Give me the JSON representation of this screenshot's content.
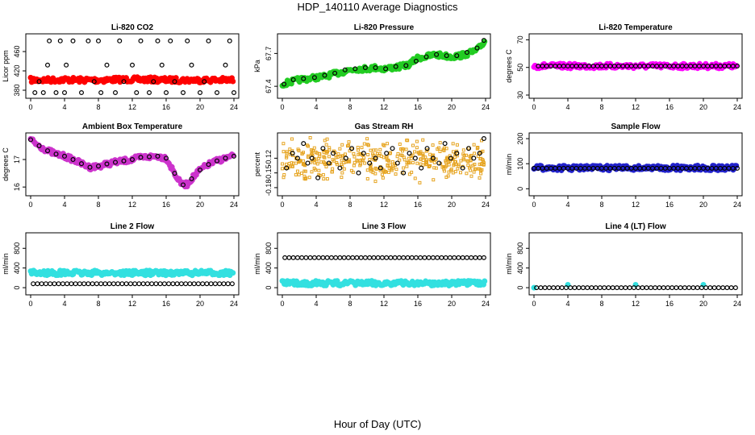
{
  "title": "HDP_140110  Average Diagnostics",
  "xlabel": "Hour of Day (UTC)",
  "chart_data": [
    {
      "type": "scatter",
      "title": "Li-820 CO2",
      "ylabel": "Licor ppm",
      "xlim": [
        0,
        24
      ],
      "ylim": [
        370,
        490
      ],
      "xticks": [
        0,
        4,
        8,
        12,
        16,
        20,
        24
      ],
      "yticks": [
        380,
        420,
        460
      ],
      "series": [
        {
          "color": "#ff0000",
          "style": "band",
          "x": [
            0,
            2,
            4,
            6,
            8,
            10,
            12,
            14,
            16,
            18,
            20,
            22,
            24
          ],
          "y": [
            401,
            401,
            402,
            401,
            401,
            402,
            402,
            402,
            401,
            401,
            401,
            401,
            401
          ]
        },
        {
          "color": "#000000",
          "style": "points",
          "x": [
            0.5,
            1.0,
            1.5,
            2.0,
            2.2,
            3.0,
            3.5,
            4.0,
            4.2,
            5.0,
            6.0,
            6.8,
            7.5,
            8.0,
            8.3,
            9.0,
            10.0,
            10.5,
            11.0,
            12.0,
            12.5,
            13.0,
            14.0,
            14.5,
            15.0,
            15.5,
            16.0,
            16.5,
            17.0,
            18.0,
            18.5,
            19.0,
            20.0,
            20.5,
            21.0,
            22.0,
            23.0,
            23.5,
            24.0
          ],
          "y": [
            375,
            398,
            375,
            432,
            482,
            375,
            482,
            375,
            432,
            482,
            375,
            482,
            398,
            482,
            375,
            432,
            375,
            482,
            398,
            432,
            375,
            482,
            375,
            398,
            482,
            432,
            375,
            482,
            398,
            375,
            482,
            432,
            375,
            398,
            482,
            375,
            432,
            482,
            375
          ]
        }
      ]
    },
    {
      "type": "scatter",
      "title": "Li-820 Pressure",
      "ylabel": "kPa",
      "xlim": [
        0,
        24
      ],
      "ylim": [
        67.32,
        67.85
      ],
      "xticks": [
        0,
        4,
        8,
        12,
        16,
        20,
        24
      ],
      "yticks": [
        67.4,
        67.7
      ],
      "series": [
        {
          "color": "#22cc22",
          "style": "band",
          "x": [
            0,
            1,
            2,
            3,
            4,
            5,
            6,
            7,
            8,
            9,
            10,
            11,
            12,
            13,
            14,
            15,
            16,
            17,
            18,
            19,
            20,
            21,
            22,
            23,
            24
          ],
          "y": [
            67.42,
            67.44,
            67.46,
            67.47,
            67.48,
            67.49,
            67.51,
            67.53,
            67.55,
            67.56,
            67.56,
            67.57,
            67.56,
            67.57,
            67.58,
            67.6,
            67.66,
            67.67,
            67.69,
            67.68,
            67.67,
            67.68,
            67.7,
            67.73,
            67.82
          ]
        },
        {
          "color": "#000000",
          "style": "points",
          "x": [
            0.2,
            1.3,
            2.5,
            3.8,
            5.0,
            6.2,
            7.4,
            8.6,
            9.8,
            11.0,
            12.2,
            13.4,
            14.6,
            15.8,
            17.0,
            18.2,
            19.4,
            20.6,
            21.8,
            23.0,
            23.8
          ],
          "y": [
            67.42,
            67.46,
            67.47,
            67.48,
            67.5,
            67.52,
            67.55,
            67.56,
            67.57,
            67.57,
            67.56,
            67.58,
            67.59,
            67.63,
            67.67,
            67.69,
            67.68,
            67.68,
            67.71,
            67.75,
            67.82
          ]
        }
      ]
    },
    {
      "type": "scatter",
      "title": "Li-820 Temperature",
      "ylabel": "degrees C",
      "xlim": [
        0,
        24
      ],
      "ylim": [
        30,
        72
      ],
      "xticks": [
        0,
        4,
        8,
        12,
        16,
        20,
        24
      ],
      "yticks": [
        30,
        50,
        70
      ],
      "series": [
        {
          "color": "#ff00ff",
          "style": "band",
          "x": [
            0,
            24
          ],
          "y": [
            51,
            51
          ]
        },
        {
          "color": "#000000",
          "style": "points",
          "x": [
            0.5,
            24
          ],
          "y": [
            51,
            51
          ],
          "every": 0.5
        }
      ]
    },
    {
      "type": "scatter",
      "title": "Ambient Box Temperature",
      "ylabel": "degrees C",
      "xlim": [
        0,
        24
      ],
      "ylim": [
        15.8,
        17.85
      ],
      "xticks": [
        0,
        4,
        8,
        12,
        16,
        20,
        24
      ],
      "yticks": [
        16.0,
        17.0
      ],
      "series": [
        {
          "color": "#cc33cc",
          "style": "band",
          "x": [
            0,
            0.5,
            1,
            2,
            3,
            4,
            5,
            6,
            7,
            8,
            9,
            10,
            11,
            12,
            13,
            14,
            15,
            16,
            17,
            17.5,
            18,
            18.5,
            19,
            20,
            21,
            22,
            23,
            24
          ],
          "y": [
            17.72,
            17.6,
            17.5,
            17.32,
            17.2,
            17.12,
            17.0,
            16.85,
            16.72,
            16.76,
            16.84,
            16.9,
            16.95,
            17.0,
            17.08,
            17.1,
            17.12,
            17.05,
            16.5,
            16.22,
            16.08,
            16.1,
            16.3,
            16.62,
            16.82,
            16.95,
            17.05,
            17.12
          ]
        },
        {
          "color": "#000000",
          "style": "points",
          "x": [
            0,
            1.0,
            2.0,
            3.0,
            4.0,
            5.0,
            6.0,
            7.0,
            8.0,
            9.0,
            10.0,
            11.0,
            12.0,
            13.0,
            14.0,
            15.0,
            16.0,
            17.0,
            18.0,
            19.0,
            20.0,
            21.0,
            22.0,
            23.0,
            24.0
          ],
          "y": [
            17.72,
            17.5,
            17.32,
            17.2,
            17.12,
            17.0,
            16.85,
            16.72,
            16.76,
            16.84,
            16.9,
            16.95,
            17.0,
            17.08,
            17.1,
            17.12,
            17.05,
            16.5,
            16.08,
            16.3,
            16.62,
            16.82,
            16.95,
            17.05,
            17.12
          ]
        }
      ]
    },
    {
      "type": "scatter",
      "title": "Gas Stream RH",
      "ylabel": "percent",
      "xlim": [
        0,
        24
      ],
      "ylim": [
        -0.19,
        -0.075
      ],
      "xticks": [
        0,
        4,
        8,
        12,
        16,
        20,
        24
      ],
      "yticks": [
        -0.18,
        -0.15,
        -0.12
      ],
      "series": [
        {
          "color": "#e6a420",
          "style": "noise",
          "center": -0.125,
          "spread": 0.04
        },
        {
          "color": "#000000",
          "style": "points",
          "x": [
            0.5,
            1.2,
            1.8,
            2.5,
            3.0,
            3.5,
            4.2,
            4.8,
            5.5,
            6.0,
            6.8,
            7.5,
            8.2,
            9.0,
            9.6,
            10.3,
            11.0,
            11.6,
            12.3,
            13.0,
            13.6,
            14.3,
            15.0,
            15.7,
            16.4,
            17.1,
            17.8,
            18.5,
            19.2,
            19.9,
            20.6,
            21.3,
            22.0,
            22.6,
            23.3,
            23.8
          ],
          "y": [
            -0.14,
            -0.11,
            -0.12,
            -0.09,
            -0.13,
            -0.12,
            -0.16,
            -0.1,
            -0.13,
            -0.11,
            -0.14,
            -0.12,
            -0.1,
            -0.15,
            -0.11,
            -0.13,
            -0.12,
            -0.14,
            -0.11,
            -0.1,
            -0.13,
            -0.15,
            -0.11,
            -0.12,
            -0.14,
            -0.1,
            -0.12,
            -0.13,
            -0.09,
            -0.12,
            -0.11,
            -0.14,
            -0.1,
            -0.12,
            -0.11,
            -0.08
          ]
        }
      ]
    },
    {
      "type": "scatter",
      "title": "Sample Flow",
      "ylabel": "ml/min",
      "xlim": [
        0,
        24
      ],
      "ylim": [
        -15,
        210
      ],
      "xticks": [
        0,
        4,
        8,
        12,
        16,
        20,
        24
      ],
      "yticks": [
        0,
        100,
        200
      ],
      "series": [
        {
          "color": "#2222cc",
          "style": "band",
          "x": [
            0,
            24
          ],
          "y": [
            83,
            83
          ]
        },
        {
          "color": "#000000",
          "style": "points",
          "x": [
            0,
            24
          ],
          "y": [
            82,
            82
          ],
          "every": 0.5
        }
      ]
    },
    {
      "type": "scatter",
      "title": "Line 2 Flow",
      "ylabel": "ml/min",
      "xlim": [
        0,
        24
      ],
      "ylim": [
        -80,
        1050
      ],
      "xticks": [
        0,
        4,
        8,
        12,
        16,
        20,
        24
      ],
      "yticks": [
        0,
        400,
        800
      ],
      "series": [
        {
          "color": "#33e0e0",
          "style": "band",
          "x": [
            0,
            24
          ],
          "y": [
            300,
            300
          ]
        },
        {
          "color": "#000000",
          "style": "points",
          "x": [
            0.3,
            24
          ],
          "y": [
            80,
            80
          ],
          "every": 0.5
        }
      ]
    },
    {
      "type": "scatter",
      "title": "Line 3 Flow",
      "ylabel": "ml/min",
      "xlim": [
        0,
        24
      ],
      "ylim": [
        -80,
        1050
      ],
      "xticks": [
        0,
        4,
        8,
        12,
        16,
        20,
        24
      ],
      "yticks": [
        0,
        400,
        800
      ],
      "series": [
        {
          "color": "#33e0e0",
          "style": "band",
          "x": [
            0,
            24
          ],
          "y": [
            90,
            90
          ]
        },
        {
          "color": "#000000",
          "style": "points",
          "x": [
            0.3,
            24
          ],
          "y": [
            610,
            610
          ],
          "every": 0.5
        }
      ]
    },
    {
      "type": "scatter",
      "title": "Line 4 (LT) Flow",
      "ylabel": "ml/min",
      "xlim": [
        0,
        24
      ],
      "ylim": [
        -80,
        1050
      ],
      "xticks": [
        0,
        4,
        8,
        12,
        16,
        20,
        24
      ],
      "yticks": [
        0,
        400,
        800
      ],
      "series": [
        {
          "color": "#33e0e0",
          "style": "spikes",
          "x": [
            0,
            4,
            12,
            20
          ],
          "y": [
            0,
            60,
            60,
            60
          ]
        },
        {
          "color": "#000000",
          "style": "points",
          "x": [
            0.3,
            24
          ],
          "y": [
            0,
            0
          ],
          "every": 0.5
        }
      ]
    }
  ]
}
